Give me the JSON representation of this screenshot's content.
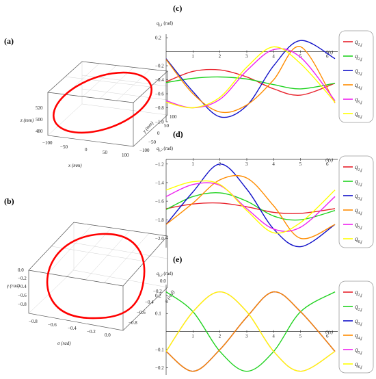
{
  "panels": {
    "a": {
      "label": "(a)"
    },
    "b": {
      "label": "(b)"
    },
    "c": {
      "label": "(c)"
    },
    "d": {
      "label": "(d)"
    },
    "e": {
      "label": "(e)"
    }
  },
  "panel_a": {
    "x_ticks": [
      "−100",
      "−50",
      "0",
      "50",
      "100"
    ],
    "y_ticks": [
      "100",
      "50",
      "0",
      "−50",
      "−100"
    ],
    "z_ticks": [
      "520",
      "500",
      "480"
    ],
    "xlabel": "x (mm)",
    "ylabel": "y (mm)",
    "zlabel": "z (mm)",
    "curve_color": "#ff0000"
  },
  "panel_b": {
    "x_ticks": [
      "−0.8",
      "−0.6",
      "−0.4",
      "−0.2",
      "0.0"
    ],
    "y_ticks": [
      "0.0",
      "−0.2",
      "−0.4",
      "−0.6",
      "−0.8"
    ],
    "z_ticks": [
      "0.0",
      "−0.2",
      "−0.4",
      "−0.6",
      "−0.8"
    ],
    "xlabel": "σ (rad)",
    "ylabel": "ψ (rad)",
    "zlabel": "γ (rad)",
    "curve_color": "#ff0000"
  },
  "legend": {
    "entries": [
      {
        "main": "q",
        "sub": "1,j",
        "color": "#e8202a"
      },
      {
        "main": "q",
        "sub": "2,j",
        "color": "#1fd21f"
      },
      {
        "main": "q",
        "sub": "3,j",
        "color": "#1010c8"
      },
      {
        "main": "q",
        "sub": "4,j",
        "color": "#ff8c00"
      },
      {
        "main": "q",
        "sub": "5,j",
        "color": "#ee22ee"
      },
      {
        "main": "q",
        "sub": "6,j",
        "color": "#ffff00"
      }
    ]
  },
  "chart_data": [
    {
      "id": "c",
      "type": "line",
      "ylabel": "q_{j,1} (rad)",
      "xlabel": "t (s)",
      "xlim": [
        0,
        6.28
      ],
      "ylim": [
        -1.0,
        0.25
      ],
      "x_ticks": [
        1,
        2,
        3,
        4,
        5,
        6
      ],
      "y_ticks": [
        0.2,
        -0.2,
        -0.4,
        -0.6,
        -0.8,
        -1.0
      ],
      "y_tick_labels": [
        "0.2",
        "−0.2",
        "−0.4",
        "−0.6",
        "−0.8",
        "−1.0"
      ],
      "series": [
        {
          "name": "q1,j",
          "color": "#e8202a",
          "values_x": [
            0,
            1,
            2,
            3,
            4,
            5,
            6.28
          ],
          "values_y": [
            -0.43,
            -0.28,
            -0.26,
            -0.36,
            -0.53,
            -0.62,
            -0.45
          ]
        },
        {
          "name": "q2,j",
          "color": "#1fd21f",
          "values_x": [
            0,
            1,
            2,
            3,
            4,
            5,
            6.28
          ],
          "values_y": [
            -0.44,
            -0.38,
            -0.36,
            -0.39,
            -0.47,
            -0.53,
            -0.45
          ]
        },
        {
          "name": "q3,j",
          "color": "#1010c8",
          "values_x": [
            0,
            1,
            2,
            3,
            4,
            5,
            6.28
          ],
          "values_y": [
            -0.1,
            -0.57,
            -0.93,
            -0.77,
            -0.2,
            0.16,
            -0.1
          ]
        },
        {
          "name": "q4,j",
          "color": "#ff8c00",
          "values_x": [
            0,
            1,
            2,
            3,
            4,
            5,
            6.28
          ],
          "values_y": [
            -0.11,
            -0.6,
            -0.86,
            -0.76,
            -0.4,
            0.07,
            -0.73
          ]
        },
        {
          "name": "q5,j",
          "color": "#ee22ee",
          "values_x": [
            0,
            1,
            2,
            3,
            4,
            5,
            6.28
          ],
          "values_y": [
            -0.7,
            -0.8,
            -0.68,
            -0.27,
            0.03,
            -0.08,
            -0.7
          ]
        },
        {
          "name": "q6,j",
          "color": "#ffff00",
          "values_x": [
            0,
            1,
            2,
            3,
            4,
            5,
            6.28
          ],
          "values_y": [
            -0.72,
            -0.8,
            -0.65,
            -0.22,
            0.07,
            -0.17,
            -0.72
          ]
        }
      ]
    },
    {
      "id": "d",
      "type": "line",
      "ylabel": "q_{j,2} (rad)",
      "xlabel": "t (s)",
      "xlim": [
        0,
        6.28
      ],
      "ylim": [
        -2.1,
        -1.15
      ],
      "x_ticks": [
        1,
        2,
        3,
        4,
        5,
        6
      ],
      "y_ticks": [
        -1.2,
        -1.4,
        -1.6,
        -1.8,
        -2.0
      ],
      "y_tick_labels": [
        "−1.2",
        "−1.4",
        "−1.6",
        "−1.8",
        "−2.0"
      ],
      "series": [
        {
          "name": "q1,j",
          "color": "#e8202a",
          "values_x": [
            0,
            1,
            2,
            3,
            4,
            5,
            6.28
          ],
          "values_y": [
            -1.68,
            -1.63,
            -1.62,
            -1.66,
            -1.72,
            -1.73,
            -1.68
          ]
        },
        {
          "name": "q2,j",
          "color": "#1fd21f",
          "values_x": [
            0,
            1,
            2,
            3,
            4,
            5,
            6.28
          ],
          "values_y": [
            -1.69,
            -1.55,
            -1.51,
            -1.6,
            -1.76,
            -1.8,
            -1.7
          ]
        },
        {
          "name": "q3,j",
          "color": "#1010c8",
          "values_x": [
            0,
            1,
            2,
            3,
            4,
            5,
            6.28
          ],
          "values_y": [
            -1.85,
            -1.5,
            -1.2,
            -1.47,
            -1.9,
            -2.09,
            -1.85
          ]
        },
        {
          "name": "q4,j",
          "color": "#ff8c00",
          "values_x": [
            0,
            1,
            2,
            3,
            4,
            5,
            6.28
          ],
          "values_y": [
            -1.85,
            -1.62,
            -1.37,
            -1.35,
            -1.65,
            -2.0,
            -1.85
          ]
        },
        {
          "name": "q5,j",
          "color": "#ee22ee",
          "values_x": [
            0,
            1,
            2,
            3,
            4,
            5,
            6.28
          ],
          "values_y": [
            -1.55,
            -1.42,
            -1.43,
            -1.68,
            -1.9,
            -1.88,
            -1.55
          ]
        },
        {
          "name": "q6,j",
          "color": "#ffff00",
          "values_x": [
            0,
            1,
            2,
            3,
            4,
            5,
            6.28
          ],
          "values_y": [
            -1.48,
            -1.39,
            -1.42,
            -1.7,
            -1.94,
            -1.83,
            -1.48
          ]
        }
      ]
    },
    {
      "id": "e",
      "type": "line",
      "ylabel": "q_{j,3} (rad)",
      "xlabel": "t (s)",
      "xlim": [
        0,
        6.28
      ],
      "ylim": [
        -0.24,
        0.26
      ],
      "x_ticks": [
        1,
        2,
        3,
        4,
        5,
        6
      ],
      "y_ticks": [
        0.2,
        0.1,
        -0.1,
        -0.2
      ],
      "y_tick_labels": [
        "0.2",
        "0.1",
        "−0.1",
        "−0.2"
      ],
      "series": [
        {
          "name": "q1,j",
          "color": "#e8202a",
          "values_x": [
            0,
            1,
            2,
            3,
            4,
            5,
            6.28
          ],
          "values_y": [
            -0.11,
            -0.22,
            -0.1,
            0.08,
            0.22,
            0.11,
            -0.11
          ]
        },
        {
          "name": "q2,j",
          "color": "#1fd21f",
          "values_x": [
            0,
            1,
            2,
            3,
            4,
            5,
            6.28
          ],
          "values_y": [
            0.22,
            0.11,
            -0.11,
            -0.22,
            -0.11,
            0.11,
            0.22
          ]
        },
        {
          "name": "q3,j",
          "color": "#1010c8",
          "values_x": [
            0,
            1,
            2,
            3,
            4,
            5,
            6.28
          ],
          "values_y": [
            -0.11,
            -0.22,
            -0.1,
            0.08,
            0.22,
            0.11,
            -0.11
          ]
        },
        {
          "name": "q4,j",
          "color": "#ff8c00",
          "values_x": [
            0,
            1,
            2,
            3,
            4,
            5,
            6.28
          ],
          "values_y": [
            -0.11,
            -0.22,
            -0.1,
            0.08,
            0.22,
            0.11,
            -0.11
          ]
        },
        {
          "name": "q5,j",
          "color": "#ee22ee",
          "values_x": [
            0,
            1,
            2,
            3,
            4,
            5,
            6.28
          ],
          "values_y": [
            -0.11,
            0.11,
            0.22,
            0.11,
            -0.11,
            -0.22,
            -0.11
          ]
        },
        {
          "name": "q6,j",
          "color": "#ffff00",
          "values_x": [
            0,
            1,
            2,
            3,
            4,
            5,
            6.28
          ],
          "values_y": [
            -0.11,
            0.11,
            0.22,
            0.11,
            -0.11,
            -0.22,
            -0.11
          ]
        }
      ]
    }
  ]
}
